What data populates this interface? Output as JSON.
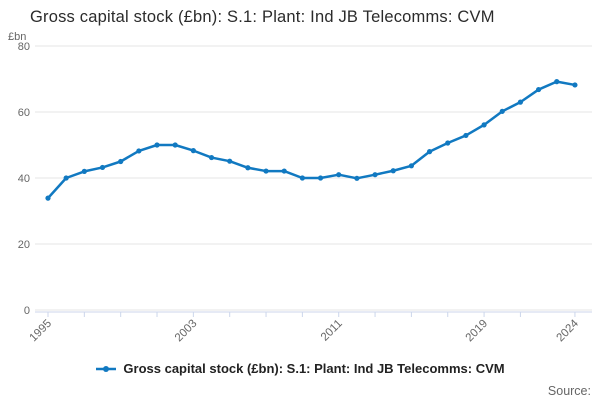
{
  "title": "Gross capital stock (£bn): S.1: Plant: Ind JB Telecomms: CVM",
  "y_axis": {
    "unit": "£bn",
    "tick_labels": [
      "80",
      "60",
      "40",
      "20",
      "0"
    ]
  },
  "x_axis": {
    "labeled_years": [
      1995,
      2003,
      2011,
      2019,
      2024
    ],
    "tick_years": [
      1995,
      1997,
      1999,
      2001,
      2003,
      2005,
      2007,
      2009,
      2011,
      2013,
      2015,
      2017,
      2019,
      2021,
      2024
    ]
  },
  "legend": {
    "label": "Gross capital stock (£bn): S.1: Plant: Ind JB Telecomms: CVM"
  },
  "source_label": "Source:",
  "colors": {
    "line": "#1179c1",
    "grid": "#e6e6e6",
    "axis": "#ccd6eb",
    "muted_text": "#666666",
    "title_text": "#2b2b2b"
  },
  "chart_data": {
    "type": "line",
    "title": "Gross capital stock (£bn): S.1: Plant: Ind JB Telecomms: CVM",
    "xlabel": "",
    "ylabel": "£bn",
    "ylim": [
      0,
      80
    ],
    "y_ticks": [
      0,
      20,
      40,
      60,
      80
    ],
    "grid": true,
    "legend_position": "bottom",
    "markers": true,
    "x": [
      1995,
      1996,
      1997,
      1998,
      1999,
      2000,
      2001,
      2002,
      2003,
      2004,
      2005,
      2006,
      2007,
      2008,
      2009,
      2010,
      2011,
      2012,
      2013,
      2014,
      2015,
      2016,
      2017,
      2018,
      2019,
      2020,
      2021,
      2022,
      2023,
      2024
    ],
    "series": [
      {
        "name": "Gross capital stock (£bn): S.1: Plant: Ind JB Telecomms: CVM",
        "values": [
          33.9,
          40.0,
          42.0,
          43.2,
          45.0,
          48.2,
          50.0,
          50.0,
          48.3,
          46.2,
          45.1,
          43.1,
          42.1,
          42.1,
          40.0,
          40.0,
          41.0,
          39.9,
          41.0,
          42.2,
          43.7,
          48.0,
          50.6,
          52.9,
          56.1,
          60.2,
          63.0,
          66.8,
          69.2,
          68.2
        ]
      }
    ]
  }
}
